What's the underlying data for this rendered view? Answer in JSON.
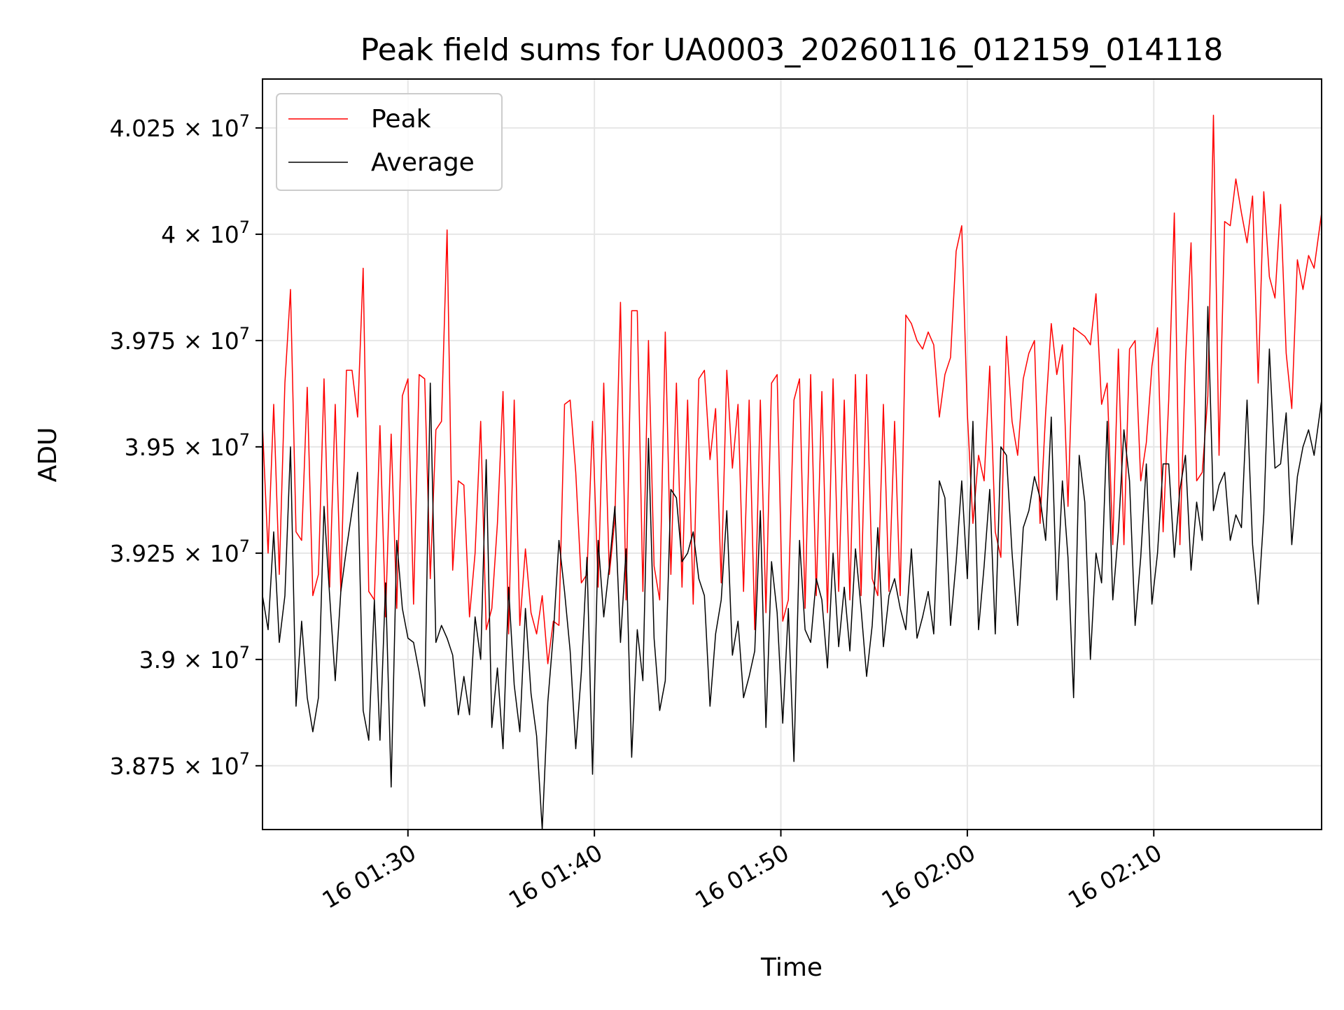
{
  "chart_data": {
    "type": "line",
    "title": "Peak field sums for UA0003_20260116_012159_014118",
    "xlabel": "Time",
    "ylabel": "ADU",
    "x_range_minutes": [
      -7.8,
      49.0
    ],
    "ylim": [
      38600000,
      40365000
    ],
    "grid": true,
    "legend_position": "top-left",
    "x_ticks": [
      {
        "minutes": 0,
        "label": "16 01:30"
      },
      {
        "minutes": 10,
        "label": "16 01:40"
      },
      {
        "minutes": 20,
        "label": "16 01:50"
      },
      {
        "minutes": 30,
        "label": "16 02:00"
      },
      {
        "minutes": 40,
        "label": "16 02:10"
      }
    ],
    "y_ticks": [
      {
        "value": 38750000,
        "mantissa": "3.875"
      },
      {
        "value": 39000000,
        "mantissa": "3.9"
      },
      {
        "value": 39250000,
        "mantissa": "3.925"
      },
      {
        "value": 39500000,
        "mantissa": "3.95"
      },
      {
        "value": 39750000,
        "mantissa": "3.975"
      },
      {
        "value": 40000000,
        "mantissa": "4"
      },
      {
        "value": 40250000,
        "mantissa": "4.025"
      }
    ],
    "y_tick_suffix": "× 10",
    "y_tick_exponent": "7",
    "series": [
      {
        "name": "Peak",
        "color": "#ff0000",
        "x_minutes": [
          -7.8,
          -7.5,
          -7.2,
          -6.9,
          -6.6,
          -6.3,
          -6.0,
          -5.7,
          -5.4,
          -5.1,
          -4.8,
          -4.5,
          -4.2,
          -3.9,
          -3.6,
          -3.3,
          -3.0,
          -2.7,
          -2.4,
          -2.1,
          -1.8,
          -1.5,
          -1.2,
          -0.9,
          -0.6,
          -0.3,
          0.0,
          0.3,
          0.6,
          0.9,
          1.2,
          1.5,
          1.8,
          2.1,
          2.4,
          2.7,
          3.0,
          3.3,
          3.6,
          3.9,
          4.2,
          4.5,
          4.8,
          5.1,
          5.4,
          5.7,
          6.0,
          6.3,
          6.6,
          6.9,
          7.2,
          7.5,
          7.8,
          8.1,
          8.4,
          8.7,
          9.0,
          9.3,
          9.6,
          9.9,
          10.2,
          10.5,
          10.8,
          11.1,
          11.4,
          11.7,
          12.0,
          12.3,
          12.6,
          12.9,
          13.2,
          13.5,
          13.8,
          14.1,
          14.4,
          14.7,
          15.0,
          15.3,
          15.6,
          15.9,
          16.2,
          16.5,
          16.8,
          17.1,
          17.4,
          17.7,
          18.0,
          18.3,
          18.6,
          18.9,
          19.2,
          19.5,
          19.8,
          20.1,
          20.4,
          20.7,
          21.0,
          21.3,
          21.6,
          21.9,
          22.2,
          22.5,
          22.8,
          23.1,
          23.4,
          23.7,
          24.0,
          24.3,
          24.6,
          24.9,
          25.2,
          25.5,
          25.8,
          26.1,
          26.4,
          26.7,
          27.0,
          27.3,
          27.6,
          27.9,
          28.2,
          28.5,
          28.8,
          29.1,
          29.4,
          29.7,
          30.0,
          30.3,
          30.6,
          30.9,
          31.2,
          31.5,
          31.8,
          32.1,
          32.4,
          32.7,
          33.0,
          33.3,
          33.6,
          33.9,
          34.2,
          34.5,
          34.8,
          35.1,
          35.4,
          35.7,
          36.0,
          36.3,
          36.6,
          36.9,
          37.2,
          37.5,
          37.8,
          38.1,
          38.4,
          38.7,
          39.0,
          39.3,
          39.6,
          39.9,
          40.2,
          40.5,
          40.8,
          41.1,
          41.4,
          41.7,
          42.0,
          42.3,
          42.6,
          42.9,
          43.2,
          43.5,
          43.8,
          44.1,
          44.4,
          44.7,
          45.0,
          45.3,
          45.6,
          45.9,
          46.2,
          46.5,
          46.8,
          47.1,
          47.4,
          47.7,
          48.0,
          48.3,
          48.6,
          49.0
        ],
        "values": [
          39550000,
          39250000,
          39600000,
          39200000,
          39650000,
          39870000,
          39300000,
          39280000,
          39640000,
          39150000,
          39200000,
          39660000,
          39170000,
          39600000,
          39160000,
          39680000,
          39680000,
          39570000,
          39920000,
          39160000,
          39140000,
          39550000,
          39100000,
          39530000,
          39120000,
          39620000,
          39660000,
          39130000,
          39670000,
          39660000,
          39190000,
          39540000,
          39560000,
          40010000,
          39210000,
          39420000,
          39410000,
          39100000,
          39250000,
          39560000,
          39070000,
          39120000,
          39320000,
          39630000,
          39060000,
          39610000,
          39080000,
          39260000,
          39110000,
          39060000,
          39150000,
          38990000,
          39090000,
          39080000,
          39600000,
          39610000,
          39440000,
          39180000,
          39200000,
          39560000,
          39170000,
          39650000,
          39200000,
          39330000,
          39840000,
          39140000,
          39820000,
          39820000,
          39160000,
          39750000,
          39220000,
          39140000,
          39770000,
          39200000,
          39650000,
          39170000,
          39610000,
          39130000,
          39660000,
          39680000,
          39470000,
          39590000,
          39180000,
          39680000,
          39450000,
          39600000,
          39160000,
          39610000,
          39070000,
          39610000,
          39110000,
          39650000,
          39670000,
          39090000,
          39140000,
          39610000,
          39660000,
          39120000,
          39670000,
          39150000,
          39630000,
          39110000,
          39660000,
          39160000,
          39610000,
          39140000,
          39670000,
          39150000,
          39670000,
          39190000,
          39150000,
          39600000,
          39160000,
          39560000,
          39150000,
          39810000,
          39790000,
          39750000,
          39730000,
          39770000,
          39740000,
          39570000,
          39670000,
          39710000,
          39960000,
          40020000,
          39580000,
          39320000,
          39480000,
          39420000,
          39690000,
          39300000,
          39240000,
          39760000,
          39560000,
          39480000,
          39660000,
          39720000,
          39750000,
          39320000,
          39580000,
          39790000,
          39670000,
          39740000,
          39360000,
          39780000,
          39770000,
          39760000,
          39740000,
          39860000,
          39600000,
          39650000,
          39270000,
          39730000,
          39270000,
          39730000,
          39750000,
          39420000,
          39510000,
          39690000,
          39780000,
          39300000,
          39610000,
          40050000,
          39270000,
          39700000,
          39980000,
          39420000,
          39440000,
          39620000,
          40280000,
          39480000,
          40030000,
          40020000,
          40130000,
          40050000,
          39980000,
          40090000,
          39650000,
          40100000,
          39900000,
          39850000,
          40070000,
          39720000,
          39590000,
          39940000,
          39870000,
          39950000,
          39920000,
          40050000
        ]
      },
      {
        "name": "Average",
        "color": "#000000",
        "x_minutes": [
          -7.8,
          -7.5,
          -7.2,
          -6.9,
          -6.6,
          -6.3,
          -6.0,
          -5.7,
          -5.4,
          -5.1,
          -4.8,
          -4.5,
          -4.2,
          -3.9,
          -3.6,
          -3.3,
          -3.0,
          -2.7,
          -2.4,
          -2.1,
          -1.8,
          -1.5,
          -1.2,
          -0.9,
          -0.6,
          -0.3,
          0.0,
          0.3,
          0.6,
          0.9,
          1.2,
          1.5,
          1.8,
          2.1,
          2.4,
          2.7,
          3.0,
          3.3,
          3.6,
          3.9,
          4.2,
          4.5,
          4.8,
          5.1,
          5.4,
          5.7,
          6.0,
          6.3,
          6.6,
          6.9,
          7.2,
          7.5,
          7.8,
          8.1,
          8.4,
          8.7,
          9.0,
          9.3,
          9.6,
          9.9,
          10.2,
          10.5,
          10.8,
          11.1,
          11.4,
          11.7,
          12.0,
          12.3,
          12.6,
          12.9,
          13.2,
          13.5,
          13.8,
          14.1,
          14.4,
          14.7,
          15.0,
          15.3,
          15.6,
          15.9,
          16.2,
          16.5,
          16.8,
          17.1,
          17.4,
          17.7,
          18.0,
          18.3,
          18.6,
          18.9,
          19.2,
          19.5,
          19.8,
          20.1,
          20.4,
          20.7,
          21.0,
          21.3,
          21.6,
          21.9,
          22.2,
          22.5,
          22.8,
          23.1,
          23.4,
          23.7,
          24.0,
          24.3,
          24.6,
          24.9,
          25.2,
          25.5,
          25.8,
          26.1,
          26.4,
          26.7,
          27.0,
          27.3,
          27.6,
          27.9,
          28.2,
          28.5,
          28.8,
          29.1,
          29.4,
          29.7,
          30.0,
          30.3,
          30.6,
          30.9,
          31.2,
          31.5,
          31.8,
          32.1,
          32.4,
          32.7,
          33.0,
          33.3,
          33.6,
          33.9,
          34.2,
          34.5,
          34.8,
          35.1,
          35.4,
          35.7,
          36.0,
          36.3,
          36.6,
          36.9,
          37.2,
          37.5,
          37.8,
          38.1,
          38.4,
          38.7,
          39.0,
          39.3,
          39.6,
          39.9,
          40.2,
          40.5,
          40.8,
          41.1,
          41.4,
          41.7,
          42.0,
          42.3,
          42.6,
          42.9,
          43.2,
          43.5,
          43.8,
          44.1,
          44.4,
          44.7,
          45.0,
          45.3,
          45.6,
          45.9,
          46.2,
          46.5,
          46.8,
          47.1,
          47.4,
          47.7,
          48.0,
          48.3,
          48.6,
          49.0
        ],
        "values": [
          39150000,
          39070000,
          39300000,
          39040000,
          39150000,
          39500000,
          38890000,
          39090000,
          38910000,
          38830000,
          38910000,
          39360000,
          39150000,
          38950000,
          39160000,
          39260000,
          39350000,
          39440000,
          38880000,
          38810000,
          39140000,
          38810000,
          39180000,
          38700000,
          39280000,
          39120000,
          39050000,
          39040000,
          38970000,
          38890000,
          39650000,
          39040000,
          39080000,
          39050000,
          39010000,
          38870000,
          38960000,
          38870000,
          39100000,
          39000000,
          39470000,
          38840000,
          38980000,
          38790000,
          39170000,
          38940000,
          38830000,
          39120000,
          38920000,
          38820000,
          38600000,
          38900000,
          39060000,
          39280000,
          39160000,
          39020000,
          38790000,
          38970000,
          39240000,
          38730000,
          39280000,
          39100000,
          39220000,
          39360000,
          39040000,
          39260000,
          38770000,
          39070000,
          38950000,
          39520000,
          39050000,
          38880000,
          38950000,
          39400000,
          39380000,
          39230000,
          39250000,
          39300000,
          39190000,
          39150000,
          38890000,
          39060000,
          39140000,
          39350000,
          39010000,
          39090000,
          38910000,
          38960000,
          39020000,
          39350000,
          38840000,
          39230000,
          39110000,
          38850000,
          39120000,
          38760000,
          39280000,
          39070000,
          39040000,
          39190000,
          39140000,
          38980000,
          39250000,
          39030000,
          39170000,
          39020000,
          39260000,
          39120000,
          38960000,
          39080000,
          39310000,
          39030000,
          39150000,
          39190000,
          39120000,
          39070000,
          39260000,
          39050000,
          39100000,
          39160000,
          39060000,
          39420000,
          39380000,
          39080000,
          39230000,
          39420000,
          39190000,
          39560000,
          39070000,
          39220000,
          39400000,
          39060000,
          39500000,
          39480000,
          39250000,
          39080000,
          39310000,
          39350000,
          39430000,
          39380000,
          39280000,
          39570000,
          39140000,
          39420000,
          39240000,
          38910000,
          39480000,
          39370000,
          39000000,
          39250000,
          39180000,
          39560000,
          39140000,
          39300000,
          39540000,
          39420000,
          39080000,
          39240000,
          39460000,
          39130000,
          39250000,
          39460000,
          39460000,
          39240000,
          39400000,
          39480000,
          39210000,
          39370000,
          39280000,
          39830000,
          39350000,
          39410000,
          39440000,
          39280000,
          39340000,
          39310000,
          39610000,
          39270000,
          39130000,
          39340000,
          39730000,
          39450000,
          39460000,
          39580000,
          39270000,
          39430000,
          39500000,
          39540000,
          39480000,
          39610000
        ]
      }
    ]
  }
}
